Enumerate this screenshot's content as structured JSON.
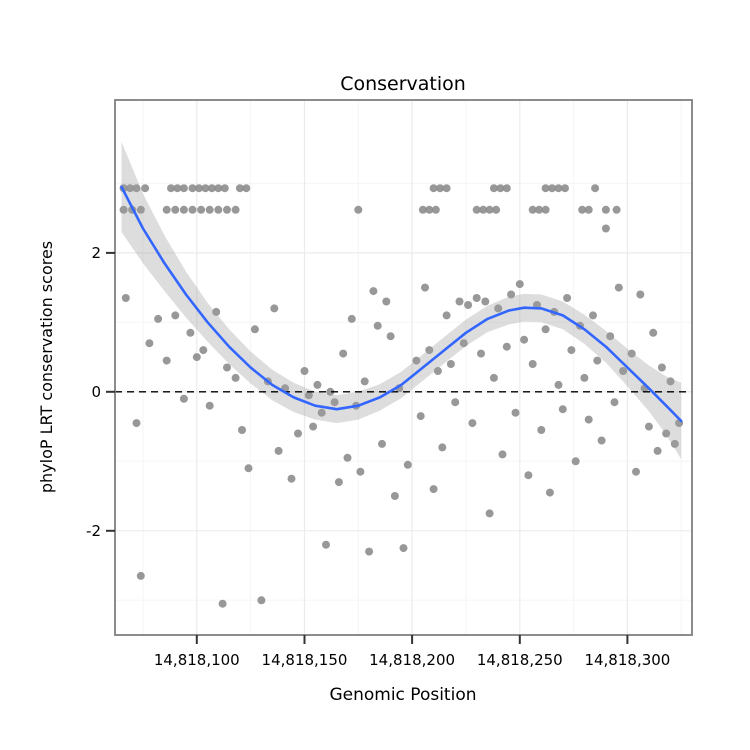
{
  "chart_data": {
    "type": "scatter",
    "title": "Conservation",
    "xlabel": "Genomic Position",
    "ylabel": "phyloP LRT conservation scores",
    "xlim": [
      14818062,
      14818330
    ],
    "ylim": [
      -3.5,
      4.2
    ],
    "hline": 0,
    "grid": true,
    "legend_position": "none",
    "x_ticks": [
      {
        "value": 14818100,
        "label": "14,818,100"
      },
      {
        "value": 14818150,
        "label": "14,818,150"
      },
      {
        "value": 14818200,
        "label": "14,818,200"
      },
      {
        "value": 14818250,
        "label": "14,818,250"
      },
      {
        "value": 14818300,
        "label": "14,818,300"
      }
    ],
    "y_ticks": [
      {
        "value": -2,
        "label": "-2"
      },
      {
        "value": 0,
        "label": "0"
      },
      {
        "value": 2,
        "label": "2"
      }
    ],
    "x_minor": [
      14818075,
      14818125,
      14818175,
      14818225,
      14818275,
      14818325
    ],
    "y_minor": [
      -3,
      -1,
      1,
      3
    ],
    "colors": {
      "panel_bg": "#FFFFFF",
      "grid_major": "#EBEBEB",
      "grid_minor": "#F5F5F5",
      "point": "#8A8A8A",
      "band": "#9E9E9E",
      "line": "#3366FF",
      "hline": "#000000",
      "border": "#7F7F7F",
      "tick": "#333333",
      "text": "#000000"
    },
    "smooth": {
      "x": [
        14818065,
        14818075,
        14818085,
        14818095,
        14818105,
        14818115,
        14818125,
        14818135,
        14818145,
        14818155,
        14818165,
        14818175,
        14818185,
        14818195,
        14818205,
        14818215,
        14818225,
        14818235,
        14818245,
        14818252,
        14818260,
        14818270,
        14818280,
        14818290,
        14818300,
        14818310,
        14818318,
        14818325
      ],
      "y": [
        2.95,
        2.35,
        1.85,
        1.4,
        1.0,
        0.65,
        0.35,
        0.1,
        -0.08,
        -0.2,
        -0.25,
        -0.2,
        -0.08,
        0.1,
        0.35,
        0.6,
        0.85,
        1.05,
        1.17,
        1.21,
        1.2,
        1.1,
        0.9,
        0.65,
        0.35,
        0.05,
        -0.2,
        -0.42
      ],
      "ci": [
        0.65,
        0.5,
        0.4,
        0.33,
        0.28,
        0.25,
        0.23,
        0.22,
        0.21,
        0.2,
        0.2,
        0.2,
        0.19,
        0.19,
        0.19,
        0.19,
        0.19,
        0.19,
        0.2,
        0.2,
        0.2,
        0.2,
        0.21,
        0.23,
        0.27,
        0.33,
        0.42,
        0.55
      ]
    },
    "points": [
      [
        14818066,
        2.93
      ],
      [
        14818069,
        2.93
      ],
      [
        14818072,
        2.93
      ],
      [
        14818076,
        2.93
      ],
      [
        14818088,
        2.93
      ],
      [
        14818091,
        2.93
      ],
      [
        14818094,
        2.93
      ],
      [
        14818098,
        2.93
      ],
      [
        14818101,
        2.93
      ],
      [
        14818104,
        2.93
      ],
      [
        14818107,
        2.93
      ],
      [
        14818110,
        2.93
      ],
      [
        14818113,
        2.93
      ],
      [
        14818120,
        2.93
      ],
      [
        14818123,
        2.93
      ],
      [
        14818066,
        2.62
      ],
      [
        14818070,
        2.62
      ],
      [
        14818074,
        2.62
      ],
      [
        14818086,
        2.62
      ],
      [
        14818090,
        2.62
      ],
      [
        14818094,
        2.62
      ],
      [
        14818098,
        2.62
      ],
      [
        14818102,
        2.62
      ],
      [
        14818106,
        2.62
      ],
      [
        14818110,
        2.62
      ],
      [
        14818114,
        2.62
      ],
      [
        14818118,
        2.62
      ],
      [
        14818210,
        2.93
      ],
      [
        14818213,
        2.93
      ],
      [
        14818216,
        2.93
      ],
      [
        14818238,
        2.93
      ],
      [
        14818241,
        2.93
      ],
      [
        14818244,
        2.93
      ],
      [
        14818262,
        2.93
      ],
      [
        14818265,
        2.93
      ],
      [
        14818268,
        2.93
      ],
      [
        14818271,
        2.93
      ],
      [
        14818285,
        2.93
      ],
      [
        14818175,
        2.62
      ],
      [
        14818205,
        2.62
      ],
      [
        14818208,
        2.62
      ],
      [
        14818211,
        2.62
      ],
      [
        14818230,
        2.62
      ],
      [
        14818233,
        2.62
      ],
      [
        14818236,
        2.62
      ],
      [
        14818239,
        2.62
      ],
      [
        14818256,
        2.62
      ],
      [
        14818259,
        2.62
      ],
      [
        14818262,
        2.62
      ],
      [
        14818279,
        2.62
      ],
      [
        14818282,
        2.62
      ],
      [
        14818290,
        2.62
      ],
      [
        14818295,
        2.62
      ],
      [
        14818067,
        1.35
      ],
      [
        14818072,
        -0.45
      ],
      [
        14818074,
        -2.65
      ],
      [
        14818078,
        0.7
      ],
      [
        14818082,
        1.05
      ],
      [
        14818086,
        0.45
      ],
      [
        14818090,
        1.1
      ],
      [
        14818094,
        -0.1
      ],
      [
        14818097,
        0.85
      ],
      [
        14818100,
        0.5
      ],
      [
        14818103,
        0.6
      ],
      [
        14818106,
        -0.2
      ],
      [
        14818109,
        1.15
      ],
      [
        14818112,
        -3.05
      ],
      [
        14818114,
        0.35
      ],
      [
        14818118,
        0.2
      ],
      [
        14818121,
        -0.55
      ],
      [
        14818124,
        -1.1
      ],
      [
        14818127,
        0.9
      ],
      [
        14818130,
        -3.0
      ],
      [
        14818133,
        0.15
      ],
      [
        14818136,
        1.2
      ],
      [
        14818138,
        -0.85
      ],
      [
        14818141,
        0.05
      ],
      [
        14818144,
        -1.25
      ],
      [
        14818147,
        -0.6
      ],
      [
        14818150,
        0.3
      ],
      [
        14818152,
        -0.05
      ],
      [
        14818154,
        -0.5
      ],
      [
        14818156,
        0.1
      ],
      [
        14818158,
        -0.3
      ],
      [
        14818160,
        -2.2
      ],
      [
        14818162,
        0.0
      ],
      [
        14818164,
        -0.15
      ],
      [
        14818166,
        -1.3
      ],
      [
        14818168,
        0.55
      ],
      [
        14818170,
        -0.95
      ],
      [
        14818172,
        1.05
      ],
      [
        14818174,
        -0.2
      ],
      [
        14818176,
        -1.15
      ],
      [
        14818178,
        0.15
      ],
      [
        14818180,
        -2.3
      ],
      [
        14818182,
        1.45
      ],
      [
        14818184,
        0.95
      ],
      [
        14818186,
        -0.75
      ],
      [
        14818188,
        1.3
      ],
      [
        14818190,
        0.8
      ],
      [
        14818192,
        -1.5
      ],
      [
        14818194,
        0.05
      ],
      [
        14818196,
        -2.25
      ],
      [
        14818198,
        -1.05
      ],
      [
        14818202,
        0.45
      ],
      [
        14818204,
        -0.35
      ],
      [
        14818206,
        1.5
      ],
      [
        14818208,
        0.6
      ],
      [
        14818210,
        -1.4
      ],
      [
        14818212,
        0.3
      ],
      [
        14818214,
        -0.8
      ],
      [
        14818216,
        1.1
      ],
      [
        14818218,
        0.4
      ],
      [
        14818220,
        -0.15
      ],
      [
        14818222,
        1.3
      ],
      [
        14818224,
        0.7
      ],
      [
        14818226,
        1.25
      ],
      [
        14818228,
        -0.45
      ],
      [
        14818230,
        1.35
      ],
      [
        14818232,
        0.55
      ],
      [
        14818234,
        1.3
      ],
      [
        14818236,
        -1.75
      ],
      [
        14818238,
        0.2
      ],
      [
        14818240,
        1.2
      ],
      [
        14818242,
        -0.9
      ],
      [
        14818244,
        0.65
      ],
      [
        14818246,
        1.4
      ],
      [
        14818248,
        -0.3
      ],
      [
        14818250,
        1.55
      ],
      [
        14818252,
        0.75
      ],
      [
        14818254,
        -1.2
      ],
      [
        14818256,
        0.4
      ],
      [
        14818258,
        1.25
      ],
      [
        14818260,
        -0.55
      ],
      [
        14818262,
        0.9
      ],
      [
        14818264,
        -1.45
      ],
      [
        14818266,
        1.15
      ],
      [
        14818268,
        0.1
      ],
      [
        14818270,
        -0.25
      ],
      [
        14818272,
        1.35
      ],
      [
        14818274,
        0.6
      ],
      [
        14818276,
        -1.0
      ],
      [
        14818278,
        0.95
      ],
      [
        14818280,
        0.2
      ],
      [
        14818282,
        -0.4
      ],
      [
        14818284,
        1.1
      ],
      [
        14818286,
        0.45
      ],
      [
        14818288,
        -0.7
      ],
      [
        14818290,
        2.35
      ],
      [
        14818292,
        0.8
      ],
      [
        14818294,
        -0.15
      ],
      [
        14818296,
        1.5
      ],
      [
        14818298,
        0.3
      ],
      [
        14818302,
        0.55
      ],
      [
        14818304,
        -1.15
      ],
      [
        14818306,
        1.4
      ],
      [
        14818308,
        0.05
      ],
      [
        14818310,
        -0.5
      ],
      [
        14818312,
        0.85
      ],
      [
        14818314,
        -0.85
      ],
      [
        14818316,
        0.35
      ],
      [
        14818318,
        -0.6
      ],
      [
        14818320,
        0.15
      ],
      [
        14818322,
        -0.75
      ],
      [
        14818324,
        -0.45
      ]
    ]
  }
}
